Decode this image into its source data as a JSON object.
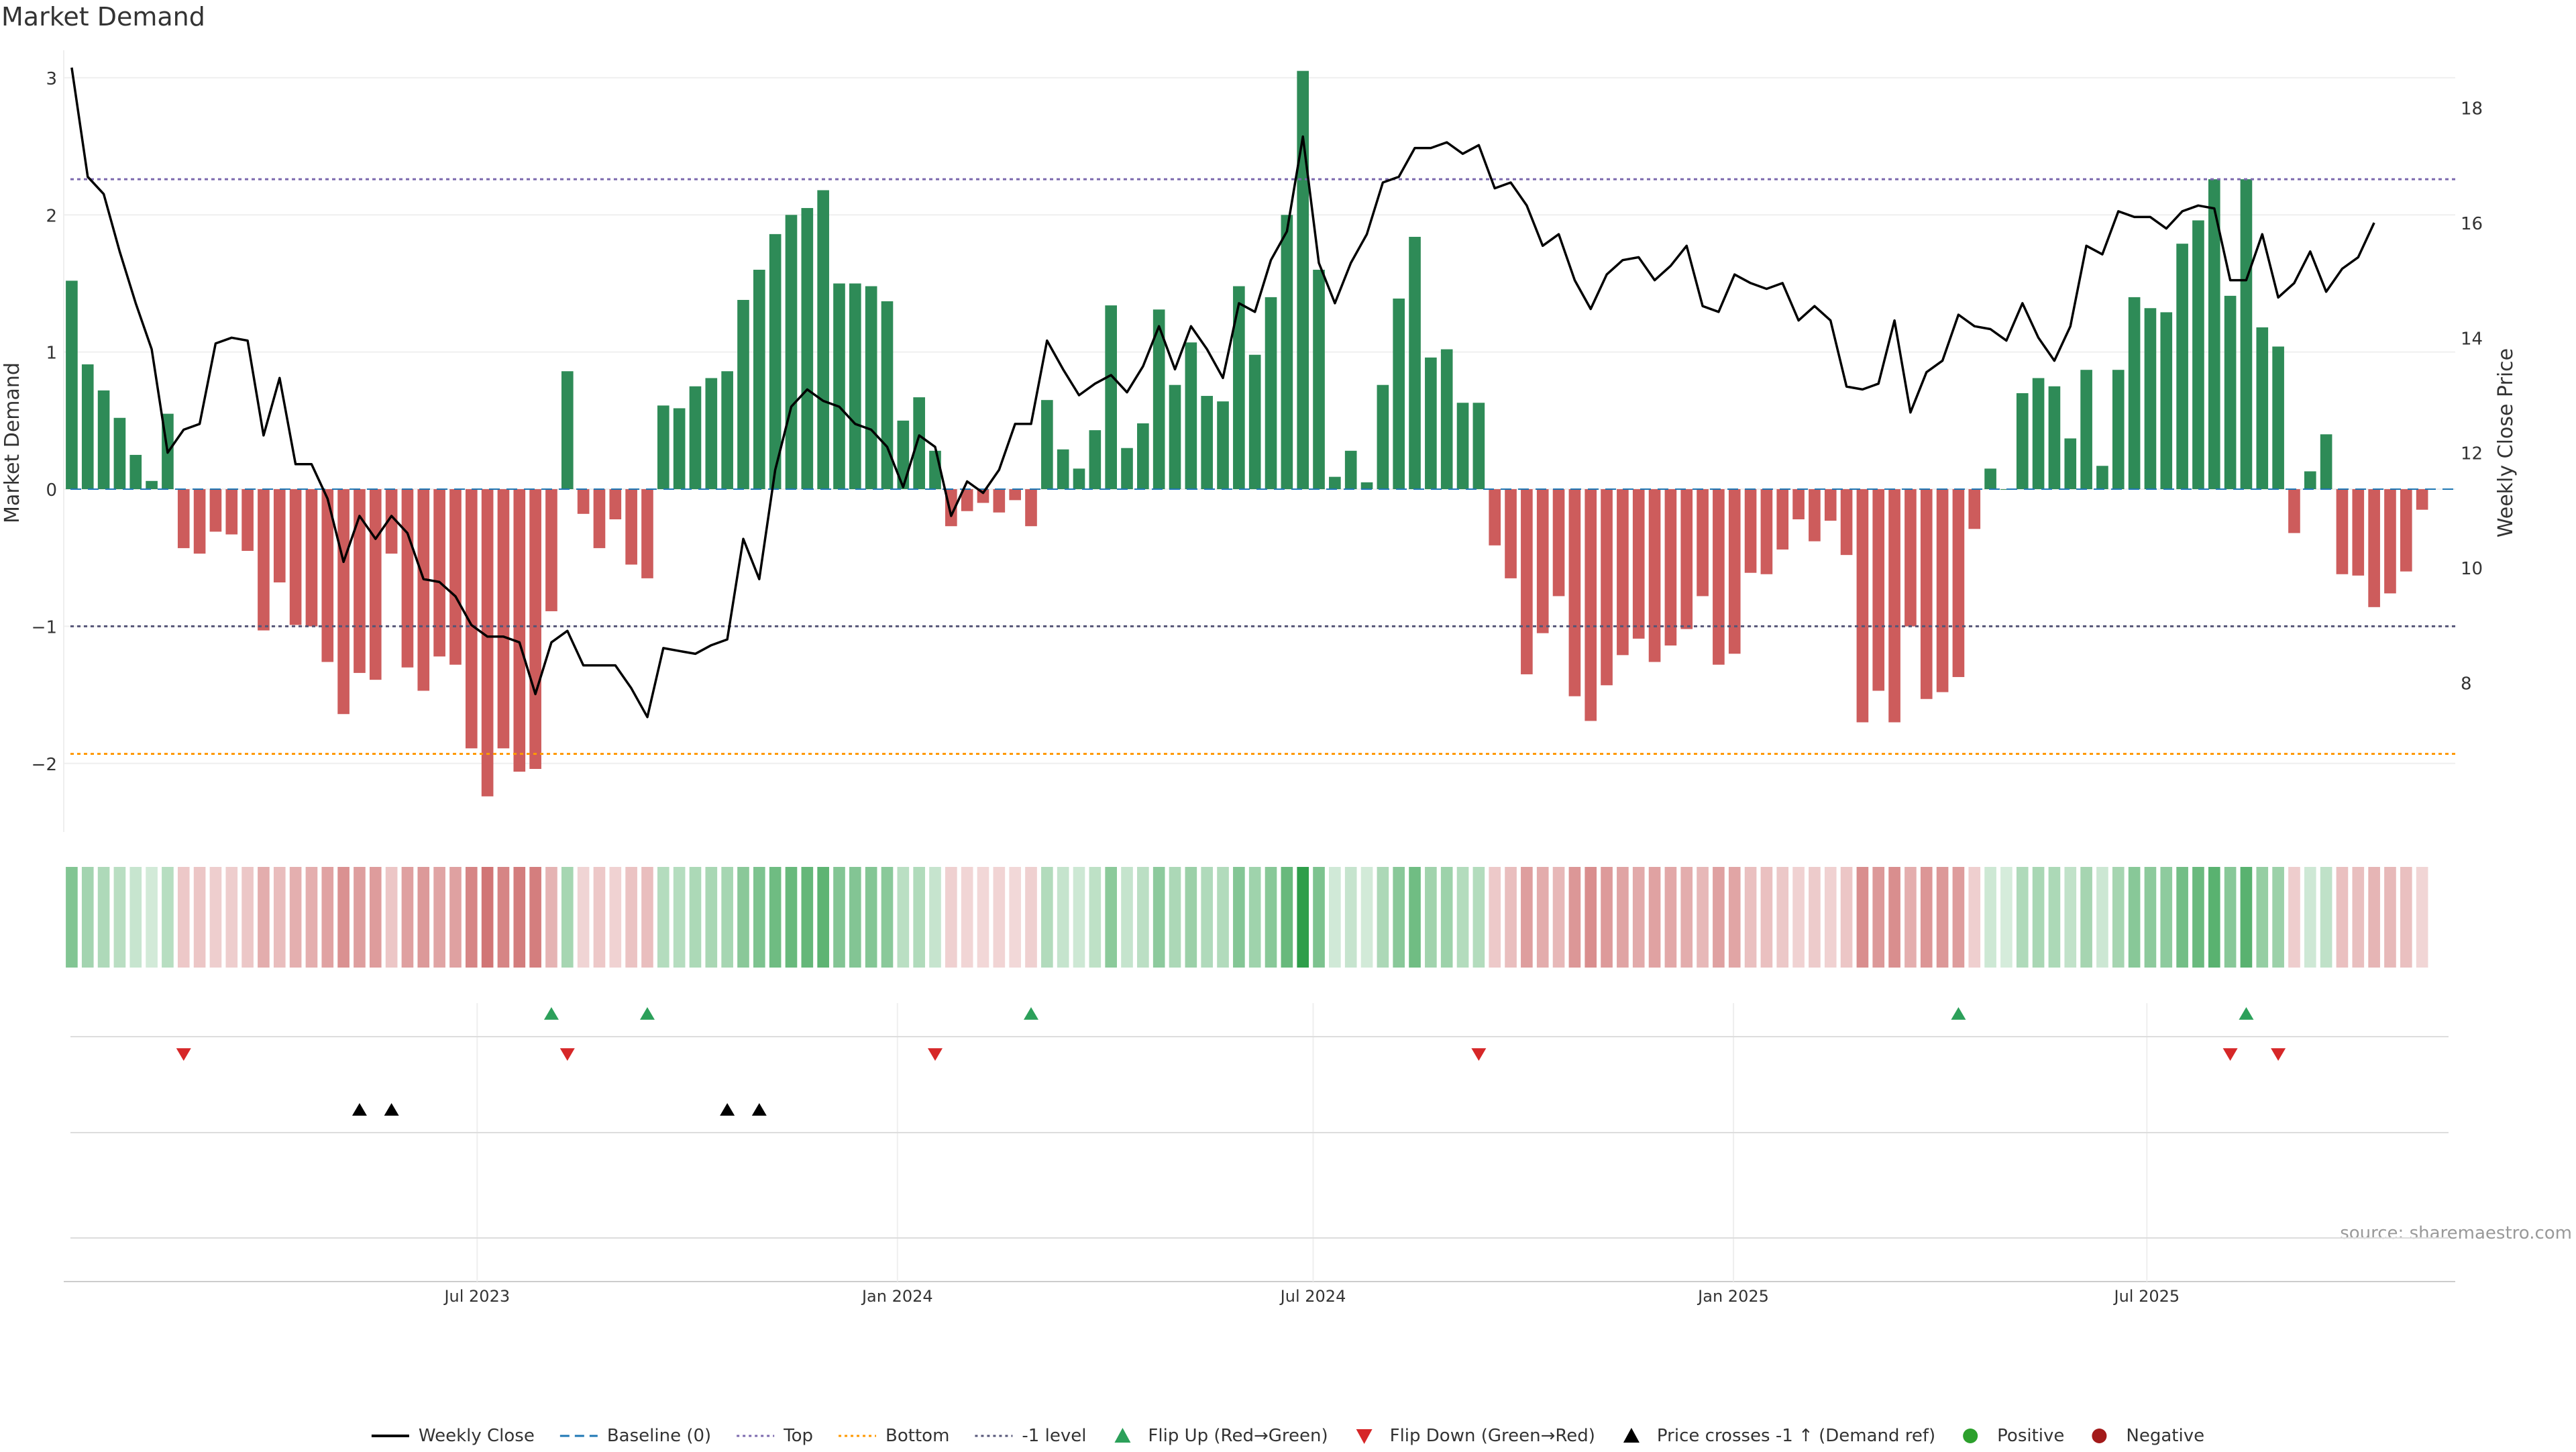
{
  "chart_data": {
    "type": "bar",
    "title": "Market Demand",
    "ylabel": "Market Demand",
    "y2label": "Weekly Close Price",
    "ylim": [
      -2.5,
      3.2
    ],
    "y2lim": [
      5.4,
      19.0
    ],
    "yticks": [
      "3",
      "2",
      "1",
      "0",
      "−1",
      "−2"
    ],
    "y2ticks": [
      "18",
      "16",
      "14",
      "12",
      "10",
      "8"
    ],
    "xlim": [
      "2023-01-01",
      "2025-11-13"
    ],
    "xticks": [
      {
        "date": "2023-07-01",
        "label": "Jul 2023"
      },
      {
        "date": "2024-01-01",
        "label": "Jan 2024"
      },
      {
        "date": "2024-07-01",
        "label": "Jul 2024"
      },
      {
        "date": "2025-01-01",
        "label": "Jan 2025"
      },
      {
        "date": "2025-07-01",
        "label": "Jul 2025"
      }
    ],
    "first_week": "2023-01-01",
    "reference_lines": {
      "top": 2.26,
      "bottom": -1.93,
      "minus_one": -1.0,
      "baseline": 0
    },
    "demand": [
      1.52,
      0.91,
      0.72,
      0.52,
      0.25,
      0.06,
      0.55,
      -0.43,
      -0.47,
      -0.31,
      -0.33,
      -0.45,
      -1.03,
      -0.68,
      -0.99,
      -1.0,
      -1.26,
      -1.64,
      -1.34,
      -1.39,
      -0.47,
      -1.3,
      -1.47,
      -1.22,
      -1.28,
      -1.89,
      -2.24,
      -1.89,
      -2.06,
      -2.04,
      -0.89,
      0.86,
      -0.18,
      -0.43,
      -0.22,
      -0.55,
      -0.65,
      0.61,
      0.59,
      0.75,
      0.81,
      0.86,
      1.38,
      1.6,
      1.86,
      2.0,
      2.05,
      2.18,
      1.5,
      1.5,
      1.48,
      1.37,
      0.5,
      0.67,
      0.28,
      -0.27,
      -0.16,
      -0.1,
      -0.17,
      -0.08,
      -0.27,
      0.65,
      0.29,
      0.15,
      0.43,
      1.34,
      0.3,
      0.48,
      1.31,
      0.76,
      1.07,
      0.68,
      0.64,
      1.48,
      0.98,
      1.4,
      2.0,
      3.05,
      1.6,
      0.09,
      0.28,
      0.05,
      0.76,
      1.39,
      1.84,
      0.96,
      1.02,
      0.63,
      0.63,
      -0.41,
      -0.65,
      -1.35,
      -1.05,
      -0.78,
      -1.51,
      -1.69,
      -1.43,
      -1.21,
      -1.09,
      -1.26,
      -1.14,
      -1.02,
      -0.78,
      -1.28,
      -1.2,
      -0.61,
      -0.62,
      -0.44,
      -0.22,
      -0.38,
      -0.23,
      -0.48,
      -1.7,
      -1.47,
      -1.7,
      -1.0,
      -1.53,
      -1.48,
      -1.37,
      -0.29,
      0.15,
      0.0,
      0.7,
      0.81,
      0.75,
      0.37,
      0.87,
      0.17,
      0.87,
      1.4,
      1.32,
      1.29,
      1.79,
      1.96,
      2.26,
      1.41,
      2.26,
      1.18,
      1.04,
      -0.32,
      0.13,
      0.4,
      -0.62,
      -0.63,
      -0.86,
      -0.76,
      -0.6,
      -0.15
    ],
    "series": [
      {
        "name": "Weekly Close",
        "values": [
          18.7,
          16.8,
          16.5,
          15.5,
          14.6,
          13.8,
          12.0,
          12.4,
          12.5,
          13.9,
          14.0,
          13.95,
          12.3,
          13.3,
          11.8,
          11.8,
          11.2,
          10.1,
          10.9,
          10.5,
          10.9,
          10.6,
          9.8,
          9.75,
          9.5,
          9.0,
          8.8,
          8.8,
          8.7,
          7.8,
          8.7,
          8.9,
          8.3,
          8.3,
          8.3,
          7.9,
          7.4,
          8.6,
          8.55,
          8.5,
          8.65,
          8.75,
          10.5,
          9.8,
          11.7,
          12.8,
          13.1,
          12.9,
          12.8,
          12.5,
          12.4,
          12.1,
          11.4,
          12.3,
          12.1,
          10.9,
          11.5,
          11.3,
          11.7,
          12.5,
          12.5,
          13.95,
          13.45,
          13.0,
          13.2,
          13.35,
          13.05,
          13.5,
          14.2,
          13.45,
          14.2,
          13.8,
          13.3,
          14.6,
          14.45,
          15.35,
          15.85,
          17.5,
          15.3,
          14.6,
          15.3,
          15.8,
          16.7,
          16.8,
          17.3,
          17.3,
          17.4,
          17.2,
          17.35,
          16.6,
          16.7,
          16.3,
          15.6,
          15.8,
          15.0,
          14.5,
          15.1,
          15.35,
          15.4,
          15.0,
          15.25,
          15.6,
          14.55,
          14.45,
          15.1,
          14.95,
          14.85,
          14.95,
          14.3,
          14.55,
          14.3,
          13.15,
          13.1,
          13.2,
          14.3,
          12.7,
          13.4,
          13.6,
          14.4,
          14.2,
          14.15,
          13.95,
          14.6,
          14.0,
          13.6,
          14.2,
          15.6,
          15.45,
          16.2,
          16.1,
          16.1,
          15.9,
          16.2,
          16.3,
          16.25,
          15.0,
          15.0,
          15.8,
          14.7,
          14.95,
          15.5,
          14.8,
          15.2,
          15.4,
          16.0
        ]
      }
    ],
    "flip_up_weeks": [
      30,
      36,
      60,
      118,
      136
    ],
    "flip_down_weeks": [
      7,
      31,
      54,
      88,
      135,
      138
    ],
    "price_cross_weeks": [
      18,
      20,
      41,
      43
    ],
    "legend": [
      {
        "label": "Weekly Close",
        "kind": "line",
        "color": "#000000"
      },
      {
        "label": "Baseline (0)",
        "kind": "dash",
        "color": "#1f77b4"
      },
      {
        "label": "Top",
        "kind": "dot",
        "color": "#7b68ae"
      },
      {
        "label": "Bottom",
        "kind": "dot",
        "color": "#ff9900"
      },
      {
        "label": "-1 level",
        "kind": "dot",
        "color": "#555577"
      },
      {
        "label": "Flip Up (Red→Green)",
        "kind": "tri-up",
        "color": "#2ca05a"
      },
      {
        "label": "Flip Down (Green→Red)",
        "kind": "tri-down",
        "color": "#d62728"
      },
      {
        "label": "Price crosses -1 ↑ (Demand ref)",
        "kind": "tri-up",
        "color": "#000000"
      },
      {
        "label": "Positive",
        "kind": "circle",
        "color": "#2ca02c"
      },
      {
        "label": "Negative",
        "kind": "circle",
        "color": "#a31a1a"
      }
    ],
    "legend_placement": "bottom-center",
    "grid": true,
    "source": "source: sharemaestro.com",
    "colors": {
      "positive": "#2e8b57",
      "negative": "#cd5c5c",
      "price": "#000000"
    }
  }
}
